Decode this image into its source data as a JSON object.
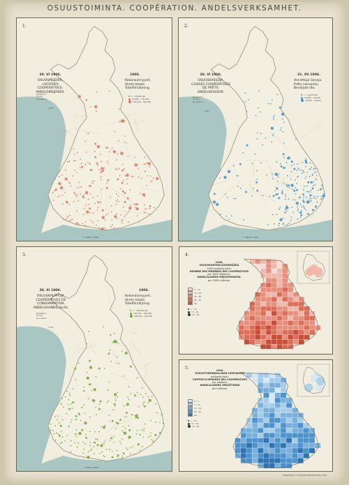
{
  "title": "OSUUSTOIMINTA.   COOPÉRATION.   ANDELSVERKSAMHET.",
  "colors": {
    "sea": "#a9c6c2",
    "land": "#f4f0e1",
    "border": "#8a826e",
    "dairy": "#d9776a",
    "credit": "#3f93c8",
    "stores": "#74a83f"
  },
  "panels": [
    {
      "number": "1.",
      "date": "30. VI 1906.",
      "heading": [
        "OSUUSMEJERIÄ.",
        "LAITERIES",
        "COOPÉRATIVES.",
        "ANDELSMEJERIER."
      ],
      "right_date": "1906.",
      "right_text": [
        "Kokonaismyynti.",
        "Vente totale.",
        "Totalförsäljning."
      ],
      "legend": [
        "1 – 50,000 mk",
        "50,000 – 150,000",
        "150,000 – 300,000"
      ],
      "scale_caption": "Rautatiet / Fonds / Grundfond",
      "scale_value": "1:307",
      "footer": "L. SIMOLA 1908"
    },
    {
      "number": "2.",
      "date": "30. VI 1906.",
      "heading": [
        "OSUUSKASSOJA.",
        "CAISSES COOPÉRATIVES",
        "DE PRÊTS.",
        "ANDELSKASSOR."
      ],
      "right_date": "31. XII 1906.",
      "right_text": [
        "Annettuja lainoja.",
        "Prêts consentis.",
        "Beviljade lån."
      ],
      "legend": [
        "1 – 10,000 mk",
        "10,000 – 20,000",
        "20,000 – 30,000"
      ],
      "scale_caption": "Rautatiet / Fonds / Grundfond",
      "scale_value": "1:245",
      "footer": "L. SIMOLA 1908"
    },
    {
      "number": "3.",
      "date": "30. XI 1906.",
      "heading": [
        "OSUUSKAUPPOJA.",
        "COOPÉRATIVES DE",
        "CONSOMMATION.",
        "ANDELSHANDELSLAG."
      ],
      "right_date": "1906.",
      "right_text": [
        "Kokonaismyynti.",
        "Vente totale.",
        "Totalförsäljning."
      ],
      "legend": [
        "1 – 100,000 mk",
        "100,000 – 200,000",
        "200,000 – 300,000"
      ],
      "scale_caption": "Rautatiet / Fonds / Grundfond",
      "scale_value": "1:327",
      "footer": "L. SIMOLA 1908"
    },
    {
      "number": "4.",
      "year": "1906.",
      "heading": [
        "OSUUSKUNTAIN JÄSENMÄÄRÄ",
        "1000 asukasta kohti.",
        "NOMBRE DES MEMBRES DES COOPÉRATIVES",
        "par 1000 habitants.",
        "ANDELSLAGENS MEDLEMSANTAL",
        "per 1000 invånare."
      ],
      "legend": [
        "0 – 10",
        "10 – 20",
        "20 – 40",
        "40 – 60",
        "60 –"
      ],
      "legend2": [
        "1 – 10",
        "10 – 20",
        "20 – 40"
      ]
    },
    {
      "number": "5.",
      "year": "1906.",
      "heading": [
        "OSUUSTOIMINNALLINEN LIIKEVAIHTO",
        "asukasta kohti.",
        "CHIFFRE D'AFFAIRES DES COOPÉRATIVES",
        "par habitant.",
        "ANDELSLAGENS OMSÄTTNING",
        "per invånare."
      ],
      "legend": [
        "0 – 5",
        "5 – 10",
        "10 – 20",
        "20 – 40",
        "40 –"
      ],
      "legend2": [
        "1 – 10",
        "10 – 20",
        "20 – 40"
      ]
    }
  ],
  "bottom_credit": "KIRJAPAINO F. TILGMANN HELSINGFORS 1910."
}
